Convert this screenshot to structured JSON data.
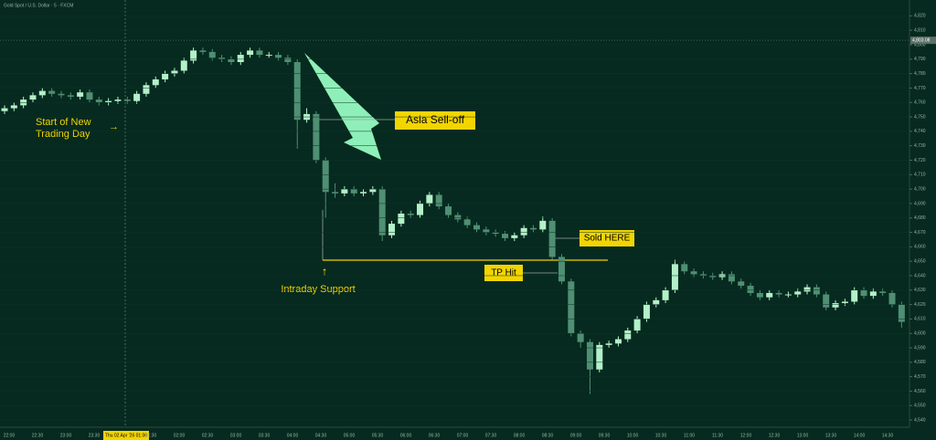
{
  "chart_data": {
    "type": "candlestick",
    "title": "Gold Spot / U.S. Dollar · 5 · FXCM",
    "open": [
      4754,
      4756,
      4758,
      4762,
      4765,
      4768,
      4766,
      4765,
      4764,
      4767,
      4762,
      4760,
      4761,
      4762,
      4761,
      4766,
      4772,
      4776,
      4780,
      4782,
      4789,
      4796,
      4795,
      4791,
      4790,
      4788,
      4793,
      4796,
      4793,
      4793,
      4791,
      4788,
      4748,
      4752,
      4720,
      4698,
      4697,
      4700,
      4697,
      4698,
      4700,
      4668,
      4676,
      4683,
      4682,
      4690,
      4696,
      4688,
      4682,
      4679,
      4675,
      4672,
      4670,
      4669,
      4666,
      4668,
      4673,
      4672,
      4678,
      4653,
      4636,
      4600,
      4594,
      4575,
      4592,
      4593,
      4596,
      4602,
      4610,
      4620,
      4623,
      4630,
      4648,
      4643,
      4641,
      4640,
      4639,
      4641,
      4636,
      4633,
      4628,
      4625,
      4628,
      4627,
      4627,
      4629,
      4632,
      4627,
      4618,
      4621,
      4622,
      4630,
      4626,
      4629,
      4628,
      4620
    ],
    "high": [
      4758,
      4760,
      4764,
      4767,
      4770,
      4770,
      4768,
      4767,
      4769,
      4769,
      4764,
      4763,
      4764,
      4764,
      4768,
      4774,
      4778,
      4782,
      4784,
      4791,
      4798,
      4798,
      4797,
      4793,
      4792,
      4795,
      4798,
      4798,
      4795,
      4795,
      4793,
      4790,
      4756,
      4754,
      4722,
      4704,
      4702,
      4702,
      4700,
      4702,
      4702,
      4678,
      4685,
      4685,
      4692,
      4698,
      4698,
      4690,
      4684,
      4681,
      4677,
      4674,
      4672,
      4671,
      4670,
      4675,
      4675,
      4681,
      4680,
      4655,
      4638,
      4602,
      4596,
      4594,
      4595,
      4598,
      4604,
      4612,
      4622,
      4625,
      4632,
      4651,
      4650,
      4645,
      4643,
      4642,
      4643,
      4643,
      4638,
      4635,
      4630,
      4630,
      4630,
      4629,
      4631,
      4634,
      4634,
      4629,
      4623,
      4624,
      4632,
      4632,
      4631,
      4631,
      4630,
      4622
    ],
    "low": [
      4752,
      4754,
      4756,
      4760,
      4763,
      4764,
      4763,
      4762,
      4762,
      4760,
      4758,
      4758,
      4759,
      4759,
      4759,
      4764,
      4770,
      4774,
      4778,
      4780,
      4787,
      4793,
      4789,
      4788,
      4786,
      4786,
      4791,
      4791,
      4791,
      4789,
      4786,
      4728,
      4746,
      4718,
      4680,
      4694,
      4695,
      4695,
      4695,
      4696,
      4664,
      4666,
      4674,
      4680,
      4680,
      4688,
      4686,
      4680,
      4677,
      4673,
      4670,
      4668,
      4667,
      4664,
      4664,
      4666,
      4670,
      4670,
      4651,
      4634,
      4598,
      4590,
      4558,
      4573,
      4590,
      4591,
      4594,
      4600,
      4608,
      4618,
      4621,
      4628,
      4641,
      4639,
      4638,
      4637,
      4637,
      4634,
      4631,
      4626,
      4623,
      4623,
      4625,
      4625,
      4625,
      4627,
      4625,
      4616,
      4616,
      4619,
      4620,
      4624,
      4624,
      4626,
      4618,
      4604
    ],
    "close": [
      4756,
      4758,
      4762,
      4765,
      4768,
      4766,
      4765,
      4764,
      4767,
      4762,
      4760,
      4761,
      4762,
      4761,
      4766,
      4772,
      4776,
      4780,
      4782,
      4789,
      4796,
      4795,
      4791,
      4790,
      4788,
      4793,
      4796,
      4793,
      4793,
      4791,
      4788,
      4748,
      4752,
      4720,
      4698,
      4697,
      4700,
      4697,
      4698,
      4700,
      4668,
      4676,
      4683,
      4682,
      4690,
      4696,
      4688,
      4682,
      4679,
      4675,
      4672,
      4670,
      4669,
      4666,
      4668,
      4673,
      4672,
      4678,
      4653,
      4636,
      4600,
      4594,
      4575,
      4592,
      4593,
      4596,
      4602,
      4610,
      4620,
      4623,
      4630,
      4648,
      4643,
      4641,
      4640,
      4639,
      4641,
      4636,
      4633,
      4628,
      4625,
      4628,
      4627,
      4627,
      4629,
      4632,
      4627,
      4618,
      4621,
      4622,
      4630,
      4626,
      4629,
      4628,
      4620,
      4608
    ],
    "up_color": "#b4f0c8",
    "down_color": "#4f8f73",
    "ylim": [
      4535,
      4831
    ],
    "yticks": [
      {
        "value": 4540,
        "label": "4,540"
      },
      {
        "value": 4550,
        "label": "4,550"
      },
      {
        "value": 4560,
        "label": "4,560"
      },
      {
        "value": 4570,
        "label": "4,570"
      },
      {
        "value": 4580,
        "label": "4,580"
      },
      {
        "value": 4590,
        "label": "4,590"
      },
      {
        "value": 4600,
        "label": "4,600"
      },
      {
        "value": 4610,
        "label": "4,610"
      },
      {
        "value": 4620,
        "label": "4,620"
      },
      {
        "value": 4630,
        "label": "4,630"
      },
      {
        "value": 4640,
        "label": "4,640"
      },
      {
        "value": 4650,
        "label": "4,650"
      },
      {
        "value": 4660,
        "label": "4,660"
      },
      {
        "value": 4670,
        "label": "4,670"
      },
      {
        "value": 4680,
        "label": "4,680"
      },
      {
        "value": 4690,
        "label": "4,690"
      },
      {
        "value": 4700,
        "label": "4,700"
      },
      {
        "value": 4710,
        "label": "4,710"
      },
      {
        "value": 4720,
        "label": "4,720"
      },
      {
        "value": 4730,
        "label": "4,730"
      },
      {
        "value": 4740,
        "label": "4,740"
      },
      {
        "value": 4750,
        "label": "4,750"
      },
      {
        "value": 4760,
        "label": "4,760"
      },
      {
        "value": 4770,
        "label": "4,770"
      },
      {
        "value": 4780,
        "label": "4,780"
      },
      {
        "value": 4790,
        "label": "4,790"
      },
      {
        "value": 4800,
        "label": "4,800"
      },
      {
        "value": 4810,
        "label": "4,810"
      },
      {
        "value": 4820,
        "label": "4,820"
      }
    ],
    "xticks": [
      "22:00",
      "22:30",
      "23:00",
      "23:30",
      null,
      "01:30",
      "02:00",
      "02:30",
      "03:00",
      "03:30",
      "04:00",
      "04:30",
      "05:00",
      "05:30",
      "06:00",
      "06:30",
      "07:00",
      "07:30",
      "08:00",
      "08:30",
      "09:00",
      "09:30",
      "10:00",
      "10:30",
      "11:00",
      "11:30",
      "12:00",
      "12:30",
      "13:00",
      "13:30",
      "14:00",
      "14:30"
    ],
    "crosshair_label": "Thu 02 Apr '26   01:00",
    "last_price": {
      "value": 4803.08,
      "label": "4,803.08"
    },
    "annotations": {
      "start": "Start of New Trading Day",
      "sell_off": "Asia Sell-off",
      "sold": "Sold HERE",
      "tp": "TP Hit",
      "support": "Intraday Support"
    }
  }
}
